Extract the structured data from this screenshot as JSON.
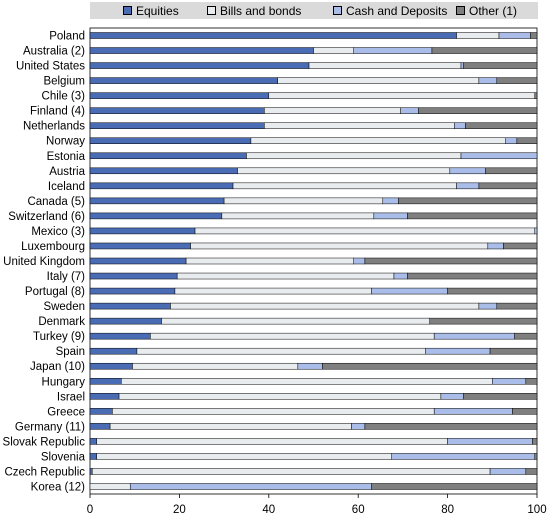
{
  "legend": {
    "items": [
      {
        "label": "Equities",
        "color": "#4a6cb4"
      },
      {
        "label": "Bills and bonds",
        "color": "#e9ecef"
      },
      {
        "label": "Cash and Deposits",
        "color": "#a9bde8"
      },
      {
        "label": "Other (1)",
        "color": "#7f7f7f"
      }
    ]
  },
  "chart_data": {
    "type": "bar",
    "orientation": "horizontal",
    "stacked": true,
    "categories": [
      "Poland",
      "Australia (2)",
      "United States",
      "Belgium",
      "Chile (3)",
      "Finland (4)",
      "Netherlands",
      "Norway",
      "Estonia",
      "Austria",
      "Iceland",
      "Canada (5)",
      "Switzerland (6)",
      "Mexico (3)",
      "Luxembourg",
      "United Kingdom",
      "Italy (7)",
      "Portugal (8)",
      "Sweden",
      "Denmark",
      "Turkey (9)",
      "Spain",
      "Japan (10)",
      "Hungary",
      "Israel",
      "Greece",
      "Germany (11)",
      "Slovak Republic",
      "Slovenia",
      "Czech Republic",
      "Korea (12)"
    ],
    "series": [
      {
        "name": "Equities",
        "color": "#4a6cb4",
        "values": [
          82,
          50,
          49,
          42,
          40,
          39,
          39,
          36,
          35,
          33,
          32,
          30,
          29.5,
          23.5,
          22.5,
          21.5,
          19.5,
          19,
          18,
          16,
          13.5,
          10.5,
          9.5,
          7,
          6.5,
          5,
          4.5,
          1.5,
          1.5,
          0.5,
          0
        ]
      },
      {
        "name": "Bills and bonds",
        "color": "#e9ecef",
        "values": [
          9.5,
          9,
          34,
          45,
          59.5,
          30.5,
          42.5,
          57,
          48,
          47.5,
          50,
          35.5,
          34,
          76,
          66.5,
          37.5,
          48.5,
          44,
          69,
          60,
          63.5,
          64.5,
          37,
          83,
          72,
          72,
          54,
          78.5,
          66,
          89,
          9
        ]
      },
      {
        "name": "Cash and Deposits",
        "color": "#a9bde8",
        "values": [
          7,
          17.5,
          0.5,
          4,
          0,
          4,
          2.5,
          2.5,
          17,
          8,
          5,
          3.5,
          7.5,
          0.5,
          3.5,
          2.5,
          3,
          17,
          4,
          0,
          18,
          14.5,
          5.5,
          7.5,
          5,
          17.5,
          3,
          19,
          32,
          8,
          54
        ]
      },
      {
        "name": "Other (1)",
        "color": "#7f7f7f",
        "values": [
          1.5,
          23.5,
          16.5,
          9,
          0.5,
          26.5,
          16,
          4.5,
          0,
          11.5,
          13,
          31,
          29,
          0,
          7.5,
          38.5,
          29,
          20,
          9,
          24,
          5,
          10.5,
          48,
          2.5,
          16.5,
          5.5,
          38.5,
          1,
          0.5,
          2.5,
          37
        ]
      }
    ],
    "xlim": [
      0,
      100
    ],
    "xticks": [
      "0",
      "20",
      "40",
      "60",
      "80",
      "100"
    ],
    "xlabel": "",
    "ylabel": "",
    "legend_position": "top"
  }
}
